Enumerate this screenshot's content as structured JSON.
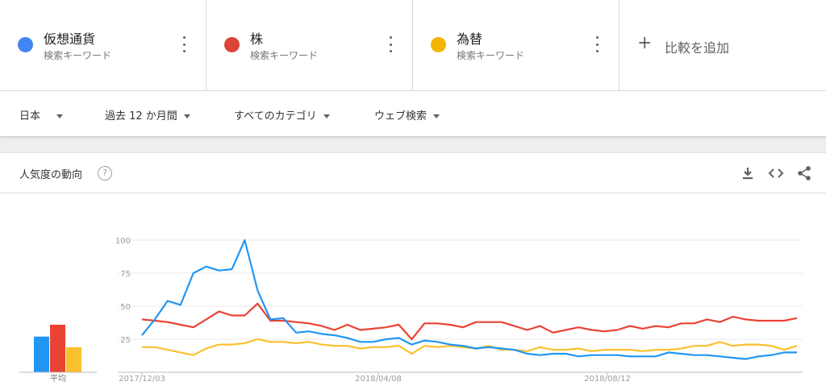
{
  "terms": [
    {
      "name": "仮想通貨",
      "sub": "検索キーワード",
      "color": "#4285f4"
    },
    {
      "name": "株",
      "sub": "検索キーワード",
      "color": "#db4437"
    },
    {
      "name": "為替",
      "sub": "検索キーワード",
      "color": "#f4b400"
    }
  ],
  "add_compare": "比較を追加",
  "filters": {
    "region": "日本",
    "period": "過去 12 か月間",
    "category": "すべてのカテゴリ",
    "search_type": "ウェブ検索"
  },
  "card": {
    "title": "人気度の動向",
    "help": "?"
  },
  "icons": {
    "help": "help-icon",
    "download": "download-icon",
    "embed": "embed-icon",
    "share": "share-icon",
    "more": "more-vert-icon",
    "add": "plus-icon"
  },
  "chart_data": {
    "type": "line",
    "x_labels": [
      "2017/12/03",
      "2018/04/08",
      "2018/08/12"
    ],
    "y_ticks": [
      25,
      50,
      75,
      100
    ],
    "ylim": [
      0,
      100
    ],
    "series": [
      {
        "name": "仮想通貨",
        "color": "#2196f3",
        "values": [
          28,
          40,
          54,
          51,
          75,
          80,
          77,
          78,
          100,
          62,
          40,
          41,
          30,
          31,
          29,
          28,
          26,
          23,
          23,
          25,
          26,
          21,
          24,
          23,
          21,
          20,
          18,
          19,
          18,
          17,
          14,
          13,
          14,
          14,
          12,
          13,
          13,
          13,
          12,
          12,
          12,
          15,
          14,
          13,
          13,
          12,
          11,
          10,
          12,
          13,
          15,
          15
        ]
      },
      {
        "name": "株",
        "color": "#ea4335",
        "values": [
          40,
          39,
          38,
          36,
          34,
          40,
          46,
          43,
          43,
          52,
          39,
          39,
          38,
          37,
          35,
          32,
          36,
          32,
          33,
          34,
          36,
          25,
          37,
          37,
          36,
          34,
          38,
          38,
          38,
          35,
          32,
          35,
          30,
          32,
          34,
          32,
          31,
          32,
          35,
          33,
          35,
          34,
          37,
          37,
          40,
          38,
          42,
          40,
          39,
          39,
          39,
          41
        ]
      },
      {
        "name": "為替",
        "color": "#fbc02d",
        "values": [
          19,
          19,
          17,
          15,
          13,
          18,
          21,
          21,
          22,
          25,
          23,
          23,
          22,
          23,
          21,
          20,
          20,
          18,
          19,
          19,
          20,
          14,
          20,
          19,
          20,
          19,
          18,
          20,
          17,
          17,
          16,
          19,
          17,
          17,
          18,
          16,
          17,
          17,
          17,
          16,
          17,
          17,
          18,
          20,
          20,
          23,
          20,
          21,
          21,
          20,
          17,
          20
        ]
      }
    ],
    "average_label": "平均",
    "averages": [
      27,
      36,
      19
    ]
  }
}
